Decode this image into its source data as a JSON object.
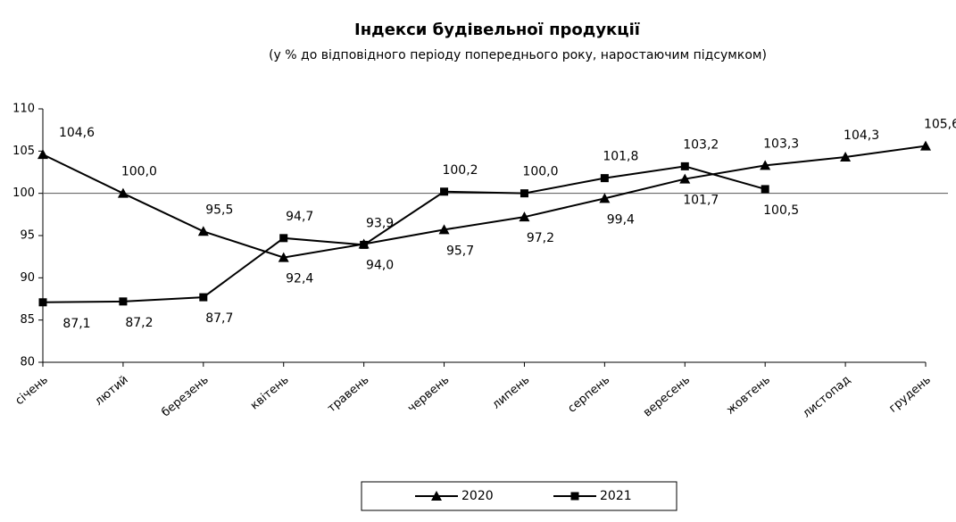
{
  "chart_data": {
    "type": "line",
    "title": "Індекси будівельної продукції",
    "subtitle": "(у % до відповідного  періоду попереднього року, наростаючим  підсумком)",
    "categories": [
      "січень",
      "лютий",
      "березень",
      "квітень",
      "травень",
      "червень",
      "липень",
      "серпень",
      "вересень",
      "жовтень",
      "листопад",
      "грудень"
    ],
    "series": [
      {
        "name": "2020",
        "color": "#000000",
        "marker": "triangle",
        "values": [
          104.6,
          100.0,
          95.5,
          92.4,
          94.0,
          95.7,
          97.2,
          99.4,
          101.7,
          103.3,
          104.3,
          105.6
        ],
        "value_labels": [
          "104,6",
          "100,0",
          "95,5",
          "92,4",
          "94,0",
          "95,7",
          "97,2",
          "99,4",
          "101,7",
          "103,3",
          "104,3",
          "105,6"
        ]
      },
      {
        "name": "2021",
        "color": "#000000",
        "marker": "square",
        "values": [
          87.1,
          87.2,
          87.7,
          94.7,
          93.9,
          100.2,
          100.0,
          101.8,
          103.2,
          100.5,
          null,
          null
        ],
        "value_labels": [
          "87,1",
          "87,2",
          "87,7",
          "94,7",
          "93,9",
          "100,2",
          "100,0",
          "101,8",
          "103,2",
          "100,5",
          null,
          null
        ]
      }
    ],
    "ylim": [
      80,
      110
    ],
    "yticks": [
      80,
      85,
      90,
      95,
      100,
      105,
      110
    ],
    "reference_line": 100,
    "legend": "bottom",
    "grid": false
  }
}
